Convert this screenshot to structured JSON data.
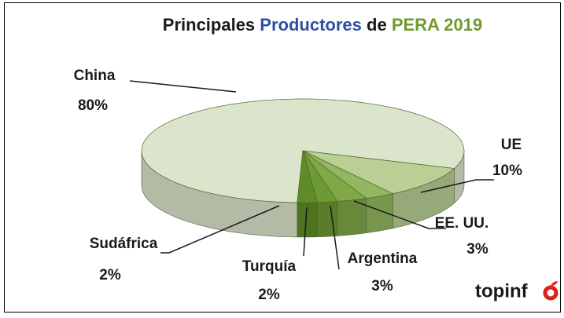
{
  "chart_data": {
    "type": "pie3d",
    "title": [
      "Principales",
      "Productores",
      "de",
      "PERA 2019"
    ],
    "title_colors": [
      "#1a1a1a",
      "#2e4fa3",
      "#1a1a1a",
      "#6f9a2e"
    ],
    "categories": [
      "China",
      "UE",
      "EE. UU.",
      "Argentina",
      "Turquía",
      "Sudáfrica"
    ],
    "values": [
      80,
      10,
      3,
      3,
      2,
      2
    ],
    "value_labels": [
      "80%",
      "10%",
      "3%",
      "3%",
      "2%",
      "2%"
    ],
    "colors": [
      "#dbe5cc",
      "#b9cf94",
      "#93b760",
      "#80a847",
      "#6f9935",
      "#5e8c28"
    ],
    "logo": "topinf"
  }
}
